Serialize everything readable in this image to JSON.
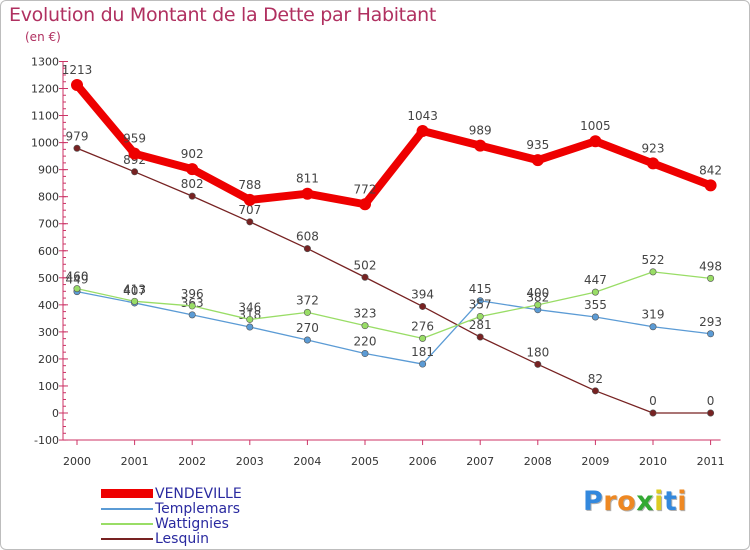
{
  "chart_data": {
    "type": "line",
    "title": "Evolution du Montant de la Dette par Habitant",
    "subtitle": "(en €)",
    "x": [
      "2000",
      "2001",
      "2002",
      "2003",
      "2004",
      "2005",
      "2006",
      "2007",
      "2008",
      "2009",
      "2010",
      "2011"
    ],
    "ylim": [
      -100,
      1300
    ],
    "yticks": [
      -100,
      0,
      100,
      200,
      300,
      400,
      500,
      600,
      700,
      800,
      900,
      1000,
      1100,
      1200,
      1300
    ],
    "grid": false,
    "legend_position": "bottom-left",
    "series": [
      {
        "name": "VENDEVILLE",
        "color": "#ee0000",
        "values": [
          1213,
          959,
          902,
          788,
          811,
          772,
          1043,
          989,
          935,
          1005,
          923,
          842
        ]
      },
      {
        "name": "Templemars",
        "color": "#5b9bd5",
        "values": [
          449,
          407,
          363,
          318,
          270,
          220,
          181,
          415,
          382,
          355,
          319,
          293
        ]
      },
      {
        "name": "Wattignies",
        "color": "#99dd66",
        "values": [
          460,
          413,
          396,
          346,
          372,
          323,
          276,
          357,
          400,
          447,
          522,
          498
        ]
      },
      {
        "name": "Lesquin",
        "color": "#772222",
        "values": [
          979,
          892,
          802,
          707,
          608,
          502,
          394,
          281,
          180,
          82,
          0,
          0
        ]
      }
    ]
  },
  "brand": {
    "letters": [
      "P",
      "r",
      "o",
      "x",
      "i",
      "t",
      "i"
    ],
    "colors": [
      "#3388dd",
      "#ee8822",
      "#ee8822",
      "#33aa33",
      "#ddcc22",
      "#3388dd",
      "#ee8822"
    ]
  }
}
